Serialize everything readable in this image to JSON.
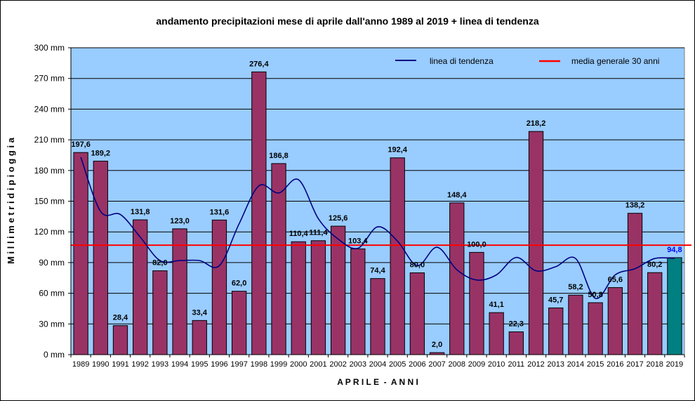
{
  "chart_data": {
    "type": "bar",
    "title": "andamento precipitazioni mese di aprile dall'anno 1989 al 2019 + linea di tendenza",
    "xlabel": "A P R I L E  -  A N N I",
    "ylabel": "M i l l i m e t r i   d i   p i o g g i a",
    "ylim": [
      0,
      300
    ],
    "yticks": [
      0,
      30,
      60,
      90,
      120,
      150,
      180,
      210,
      240,
      270,
      300
    ],
    "ytick_labels": [
      "0 mm",
      "30 mm",
      "60 mm",
      "90 mm",
      "120 mm",
      "150 mm",
      "180 mm",
      "210 mm",
      "240 mm",
      "270 mm",
      "300 mm"
    ],
    "grid": true,
    "legend_position": "top-right",
    "categories": [
      "1989",
      "1990",
      "1991",
      "1992",
      "1993",
      "1994",
      "1995",
      "1996",
      "1997",
      "1998",
      "1999",
      "2000",
      "2001",
      "2002",
      "2003",
      "2004",
      "2005",
      "2006",
      "2007",
      "2008",
      "2009",
      "2010",
      "2011",
      "2012",
      "2013",
      "2014",
      "2015",
      "2016",
      "2017",
      "2018",
      "2019"
    ],
    "values": [
      197.6,
      189.2,
      28.4,
      131.8,
      82.0,
      123.0,
      33.4,
      131.6,
      62.0,
      276.4,
      186.8,
      110.4,
      111.4,
      125.6,
      103.4,
      74.4,
      192.4,
      80.0,
      2.0,
      148.4,
      100.0,
      41.1,
      22.3,
      218.2,
      45.7,
      58.2,
      50.8,
      65.6,
      138.2,
      80.2,
      94.8
    ],
    "value_labels": [
      "197,6",
      "189,2",
      "28,4",
      "131,8",
      "82,0",
      "123,0",
      "33,4",
      "131,6",
      "62,0",
      "276,4",
      "186,8",
      "110,4",
      "111,4",
      "125,6",
      "103,4",
      "74,4",
      "192,4",
      "80,0",
      "2,0",
      "148,4",
      "100,0",
      "41,1",
      "22,3",
      "218,2",
      "45,7",
      "58,2",
      "50,8",
      "65,6",
      "138,2",
      "80,2",
      "94,8"
    ],
    "bar_color": "#993366",
    "highlight_color": "#008080",
    "highlight_label_color": "#0000ff",
    "highlight_index": 30,
    "plot_background": "#99ccff",
    "series": [
      {
        "name": "linea di tendenza",
        "type": "line",
        "color": "#000080",
        "values": [
          193,
          140,
          137,
          115,
          92,
          92,
          92,
          87,
          128,
          165,
          158,
          171,
          133,
          113,
          104,
          125,
          111,
          87,
          105,
          83,
          73,
          78,
          95,
          82,
          86,
          94,
          55,
          78,
          84,
          94,
          94
        ]
      },
      {
        "name": "media generale 30 anni",
        "type": "hline",
        "color": "#ff0000",
        "value": 107
      }
    ]
  }
}
